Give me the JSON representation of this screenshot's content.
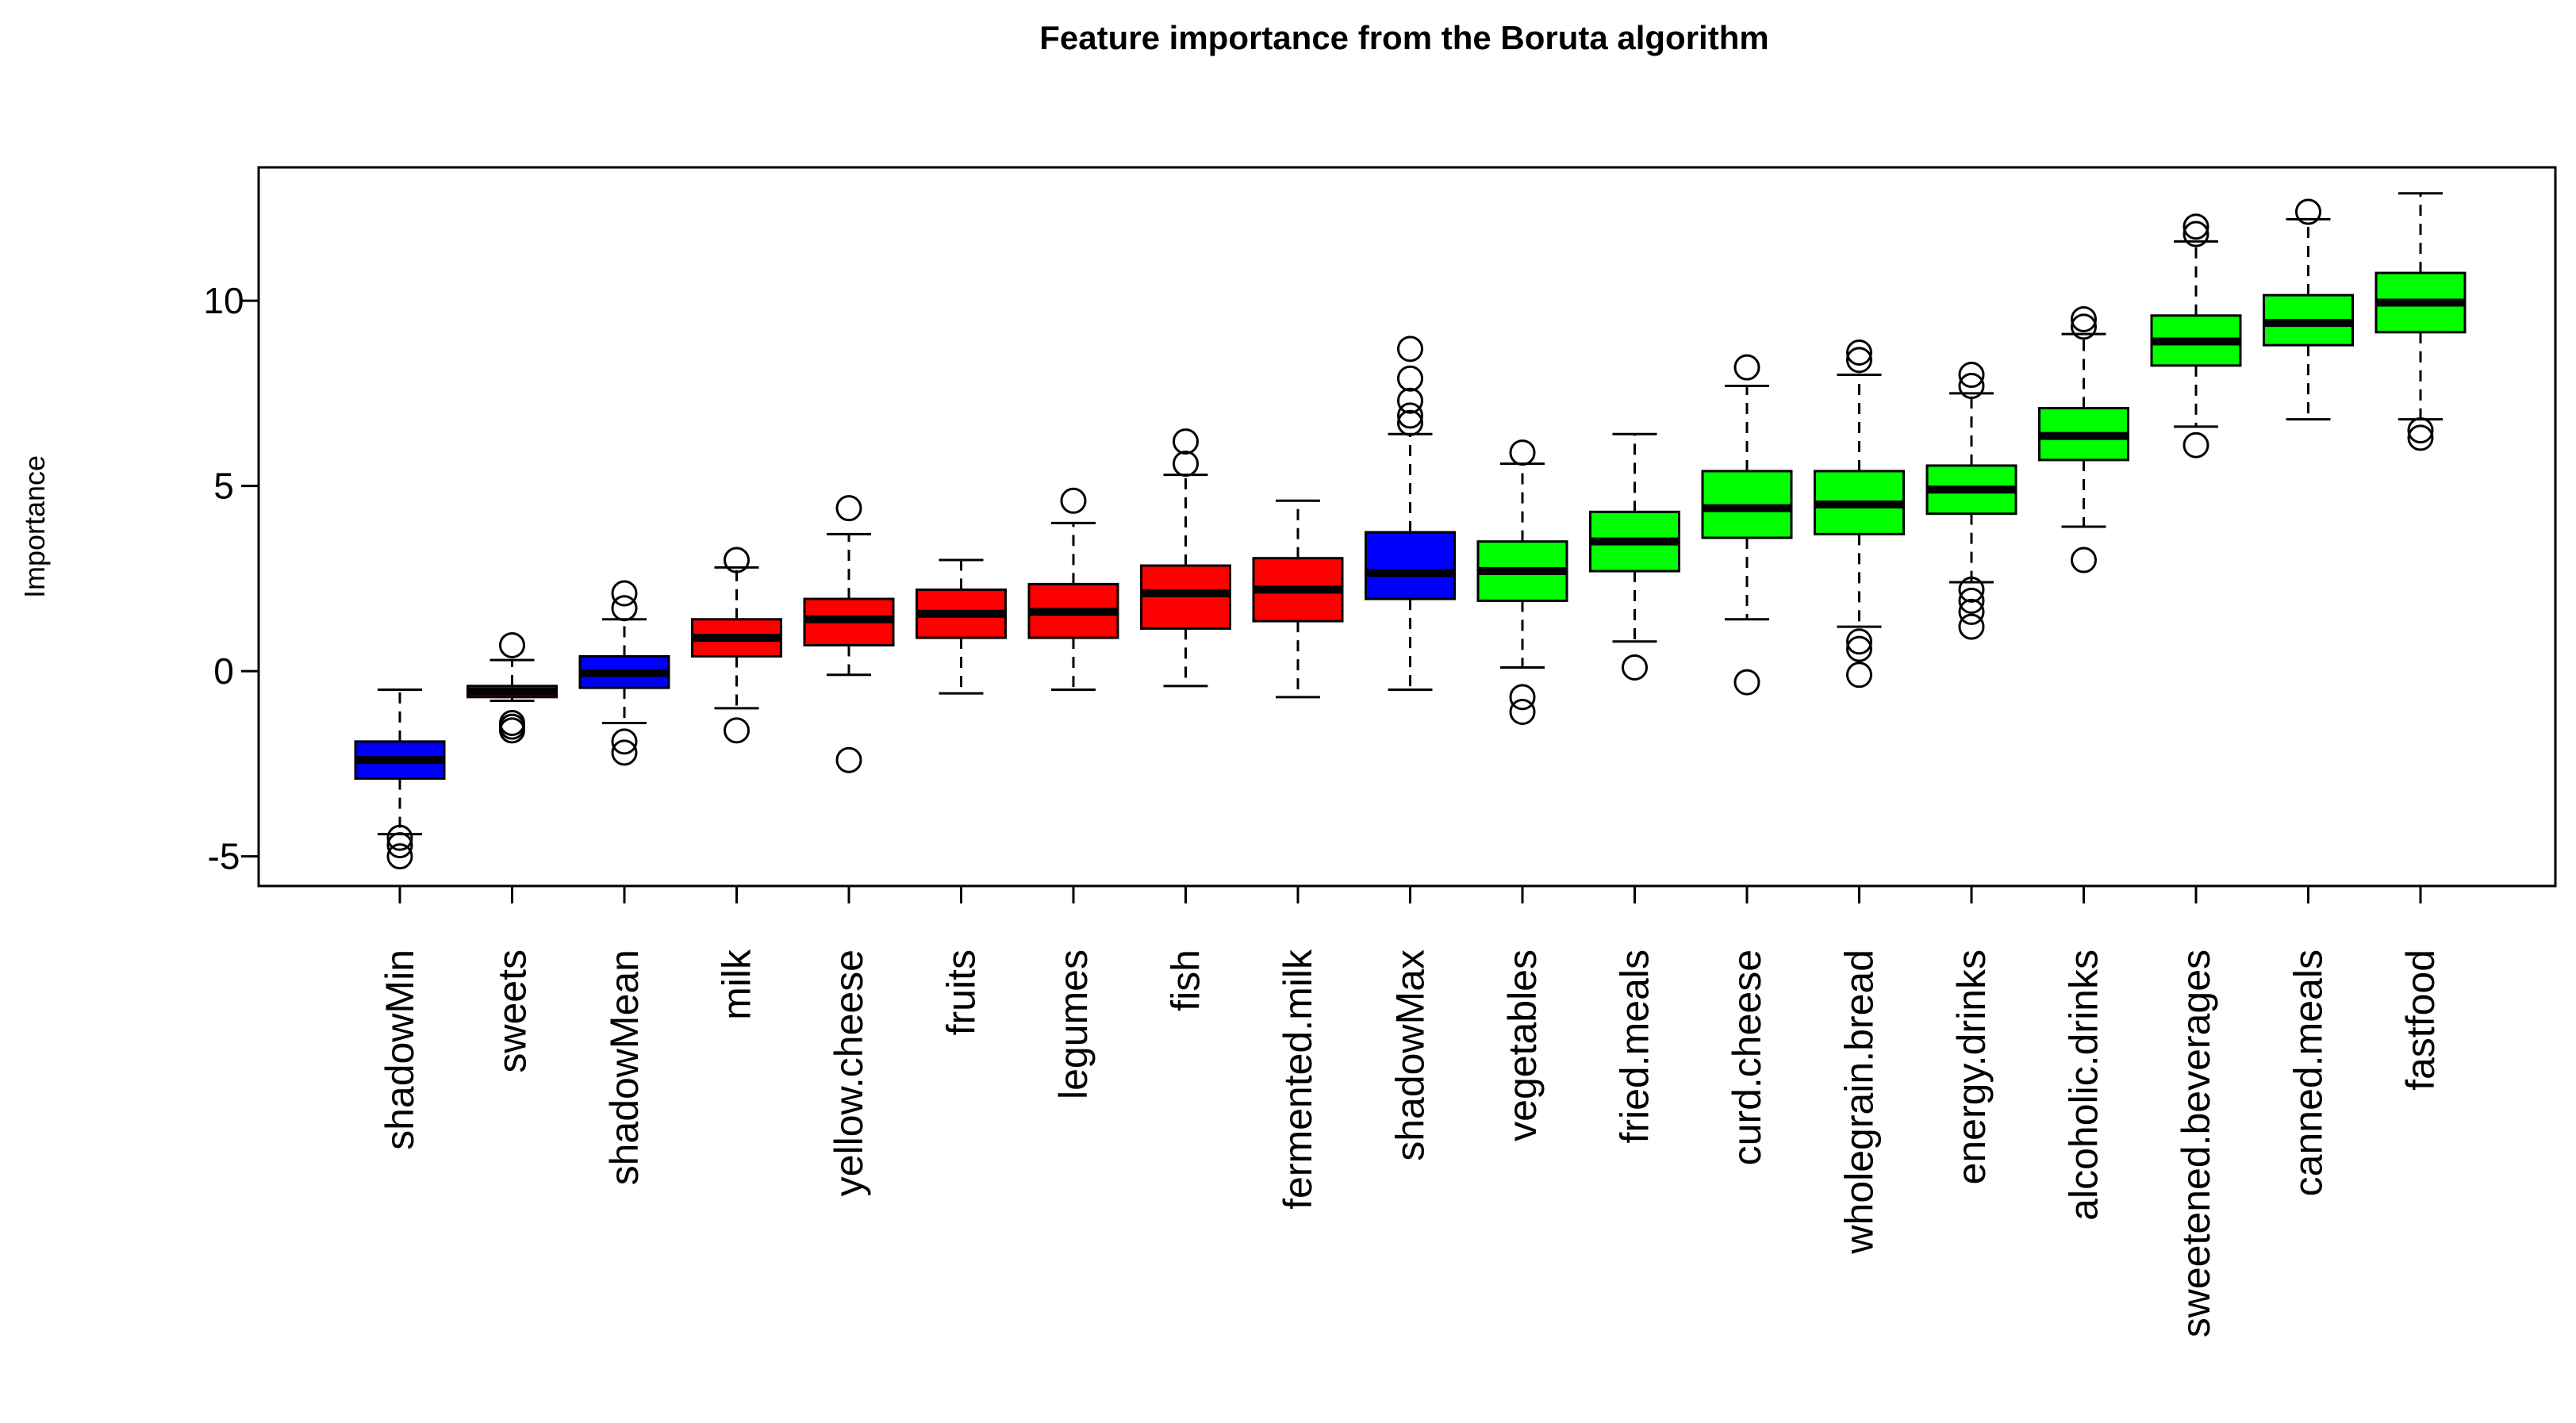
{
  "chart_data": {
    "type": "boxplot",
    "title": "Feature importance from the Boruta algorithm",
    "xlabel": "",
    "ylabel": "Importance",
    "ylim": [
      -5.8,
      13.6
    ],
    "yticks": [
      -5,
      0,
      5,
      10
    ],
    "colors": {
      "shadow": "#0000ff",
      "rejected": "#ff0000",
      "confirmed": "#00ff00",
      "median": "#000000"
    },
    "categories": [
      "shadowMin",
      "sweets",
      "shadowMean",
      "milk",
      "yellow.cheese",
      "fruits",
      "legumes",
      "fish",
      "fermented.milk",
      "shadowMax",
      "vegetables",
      "fried.meals",
      "curd.cheese",
      "wholegrain.bread",
      "energy.drinks",
      "alcoholic.drinks",
      "sweetened.beverages",
      "canned.meals",
      "fastfood"
    ],
    "boxes": [
      {
        "name": "shadowMin",
        "group": "shadow",
        "whisker_low": -4.4,
        "q1": -2.9,
        "median": -2.4,
        "q3": -1.9,
        "whisker_high": -0.5,
        "outliers": [
          -4.5,
          -4.7,
          -5.0
        ]
      },
      {
        "name": "sweets",
        "group": "rejected",
        "whisker_low": -0.8,
        "q1": -0.7,
        "median": -0.55,
        "q3": -0.4,
        "whisker_high": 0.3,
        "outliers": [
          0.7,
          -1.4,
          -1.5,
          -1.6
        ]
      },
      {
        "name": "shadowMean",
        "group": "shadow",
        "whisker_low": -1.4,
        "q1": -0.45,
        "median": -0.05,
        "q3": 0.4,
        "whisker_high": 1.4,
        "outliers": [
          2.1,
          1.7,
          -1.9,
          -2.2
        ]
      },
      {
        "name": "milk",
        "group": "rejected",
        "whisker_low": -1.0,
        "q1": 0.4,
        "median": 0.9,
        "q3": 1.4,
        "whisker_high": 2.8,
        "outliers": [
          3.0,
          -1.6
        ]
      },
      {
        "name": "yellow.cheese",
        "group": "rejected",
        "whisker_low": -0.1,
        "q1": 0.7,
        "median": 1.4,
        "q3": 1.95,
        "whisker_high": 3.7,
        "outliers": [
          4.4,
          -2.4
        ]
      },
      {
        "name": "fruits",
        "group": "rejected",
        "whisker_low": -0.6,
        "q1": 0.9,
        "median": 1.55,
        "q3": 2.2,
        "whisker_high": 3.0,
        "outliers": []
      },
      {
        "name": "legumes",
        "group": "rejected",
        "whisker_low": -0.5,
        "q1": 0.9,
        "median": 1.6,
        "q3": 2.35,
        "whisker_high": 4.0,
        "outliers": [
          4.6
        ]
      },
      {
        "name": "fish",
        "group": "rejected",
        "whisker_low": -0.4,
        "q1": 1.15,
        "median": 2.1,
        "q3": 2.85,
        "whisker_high": 5.3,
        "outliers": [
          6.2,
          5.6
        ]
      },
      {
        "name": "fermented.milk",
        "group": "rejected",
        "whisker_low": -0.7,
        "q1": 1.35,
        "median": 2.2,
        "q3": 3.05,
        "whisker_high": 4.6,
        "outliers": []
      },
      {
        "name": "shadowMax",
        "group": "shadow",
        "whisker_low": -0.5,
        "q1": 1.95,
        "median": 2.65,
        "q3": 3.75,
        "whisker_high": 6.4,
        "outliers": [
          8.7,
          7.9,
          7.3,
          6.9,
          6.7
        ]
      },
      {
        "name": "vegetables",
        "group": "confirmed",
        "whisker_low": 0.1,
        "q1": 1.9,
        "median": 2.7,
        "q3": 3.5,
        "whisker_high": 5.6,
        "outliers": [
          5.9,
          -0.7,
          -1.1
        ]
      },
      {
        "name": "fried.meals",
        "group": "confirmed",
        "whisker_low": 0.8,
        "q1": 2.7,
        "median": 3.5,
        "q3": 4.3,
        "whisker_high": 6.4,
        "outliers": [
          0.1
        ]
      },
      {
        "name": "curd.cheese",
        "group": "confirmed",
        "whisker_low": 1.4,
        "q1": 3.6,
        "median": 4.4,
        "q3": 5.4,
        "whisker_high": 7.7,
        "outliers": [
          8.2,
          -0.3
        ]
      },
      {
        "name": "wholegrain.bread",
        "group": "confirmed",
        "whisker_low": 1.2,
        "q1": 3.7,
        "median": 4.5,
        "q3": 5.4,
        "whisker_high": 8.0,
        "outliers": [
          8.6,
          8.4,
          0.8,
          0.6,
          -0.1
        ]
      },
      {
        "name": "energy.drinks",
        "group": "confirmed",
        "whisker_low": 2.4,
        "q1": 4.25,
        "median": 4.9,
        "q3": 5.55,
        "whisker_high": 7.5,
        "outliers": [
          8.0,
          7.7,
          2.2,
          1.9,
          1.6,
          1.2
        ]
      },
      {
        "name": "alcoholic.drinks",
        "group": "confirmed",
        "whisker_low": 3.9,
        "q1": 5.7,
        "median": 6.35,
        "q3": 7.1,
        "whisker_high": 9.1,
        "outliers": [
          9.5,
          9.3,
          3.0
        ]
      },
      {
        "name": "sweetened.beverages",
        "group": "confirmed",
        "whisker_low": 6.6,
        "q1": 8.25,
        "median": 8.9,
        "q3": 9.6,
        "whisker_high": 11.6,
        "outliers": [
          12.0,
          11.8,
          6.1
        ]
      },
      {
        "name": "canned.meals",
        "group": "confirmed",
        "whisker_low": 6.8,
        "q1": 8.8,
        "median": 9.4,
        "q3": 10.15,
        "whisker_high": 12.2,
        "outliers": [
          12.4
        ]
      },
      {
        "name": "fastfood",
        "group": "confirmed",
        "whisker_low": 6.8,
        "q1": 9.15,
        "median": 9.95,
        "q3": 10.75,
        "whisker_high": 12.9,
        "outliers": [
          6.5,
          6.3
        ]
      }
    ]
  }
}
